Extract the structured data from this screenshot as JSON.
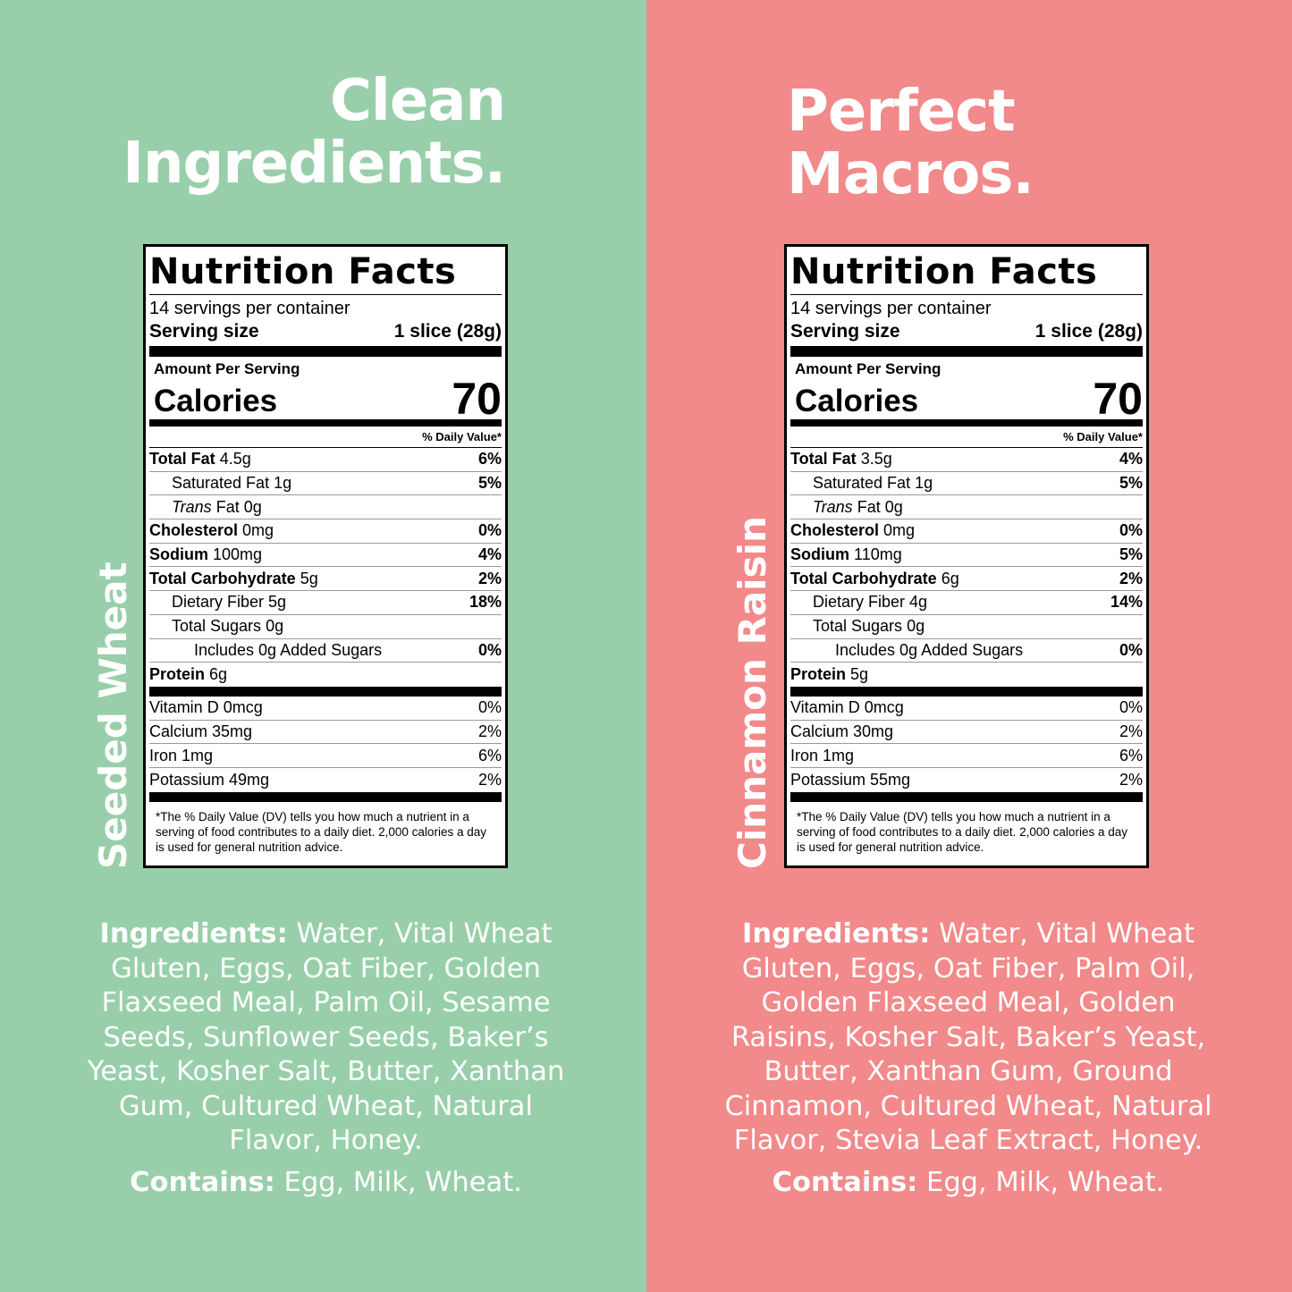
{
  "colors": {
    "left_bg": "#98cfaa",
    "right_bg": "#f2898a",
    "text": "#ffffff"
  },
  "left": {
    "headline_line1": "Clean",
    "headline_line2": "Ingredients.",
    "product_name": "Seeded Wheat",
    "label": {
      "title": "Nutrition Facts",
      "servings": "14 servings per container",
      "serving_size_label": "Serving size",
      "serving_size_value": "1 slice (28g)",
      "amount_per_serving": "Amount Per Serving",
      "calories_label": "Calories",
      "calories_value": "70",
      "dv_header": "% Daily Value*",
      "rows": [
        {
          "name": "Total Fat",
          "amount": "4.5g",
          "pct": "6%"
        },
        {
          "name": "Saturated Fat",
          "amount": "1g",
          "pct": "5%"
        },
        {
          "name": "Trans",
          "amount": "Fat 0g",
          "pct": ""
        },
        {
          "name": "Cholesterol",
          "amount": "0mg",
          "pct": "0%"
        },
        {
          "name": "Sodium",
          "amount": "100mg",
          "pct": "4%"
        },
        {
          "name": "Total Carbohydrate",
          "amount": "5g",
          "pct": "2%"
        },
        {
          "name": "Dietary Fiber",
          "amount": "5g",
          "pct": "18%"
        },
        {
          "name": "Total Sugars",
          "amount": "0g",
          "pct": ""
        },
        {
          "name": "Includes 0g Added Sugars",
          "amount": "",
          "pct": "0%"
        },
        {
          "name": "Protein",
          "amount": "6g",
          "pct": ""
        }
      ],
      "vitamins": [
        {
          "name": "Vitamin D 0mcg",
          "pct": "0%"
        },
        {
          "name": "Calcium 35mg",
          "pct": "2%"
        },
        {
          "name": "Iron 1mg",
          "pct": "6%"
        },
        {
          "name": "Potassium 49mg",
          "pct": "2%"
        }
      ],
      "footnote": "*The % Daily Value (DV) tells you how much a nutrient in a serving of food contributes to a daily diet. 2,000 calories a day is used for general nutrition advice."
    },
    "ingredients_label": "Ingredients:",
    "ingredients_text": " Water, Vital Wheat Gluten, Eggs, Oat Fiber, Golden Flaxseed Meal, Palm Oil, Sesame Seeds, Sunflower Seeds, Baker’s Yeast, Kosher Salt, Butter, Xanthan Gum, Cultured Wheat, Natural Flavor, Honey.",
    "contains_label": "Contains:",
    "contains_text": " Egg, Milk, Wheat."
  },
  "right": {
    "headline_line1": "Perfect",
    "headline_line2": "Macros.",
    "product_name": "Cinnamon Raisin",
    "label": {
      "title": "Nutrition Facts",
      "servings": "14 servings per container",
      "serving_size_label": "Serving size",
      "serving_size_value": "1 slice (28g)",
      "amount_per_serving": "Amount Per Serving",
      "calories_label": "Calories",
      "calories_value": "70",
      "dv_header": "% Daily Value*",
      "rows": [
        {
          "name": "Total Fat",
          "amount": "3.5g",
          "pct": "4%"
        },
        {
          "name": "Saturated Fat",
          "amount": "1g",
          "pct": "5%"
        },
        {
          "name": "Trans",
          "amount": "Fat 0g",
          "pct": ""
        },
        {
          "name": "Cholesterol",
          "amount": "0mg",
          "pct": "0%"
        },
        {
          "name": "Sodium",
          "amount": "110mg",
          "pct": "5%"
        },
        {
          "name": "Total Carbohydrate",
          "amount": "6g",
          "pct": "2%"
        },
        {
          "name": "Dietary Fiber",
          "amount": "4g",
          "pct": "14%"
        },
        {
          "name": "Total Sugars",
          "amount": "0g",
          "pct": ""
        },
        {
          "name": "Includes 0g Added Sugars",
          "amount": "",
          "pct": "0%"
        },
        {
          "name": "Protein",
          "amount": "5g",
          "pct": ""
        }
      ],
      "vitamins": [
        {
          "name": "Vitamin D 0mcg",
          "pct": "0%"
        },
        {
          "name": "Calcium 30mg",
          "pct": "2%"
        },
        {
          "name": "Iron 1mg",
          "pct": "6%"
        },
        {
          "name": "Potassium 55mg",
          "pct": "2%"
        }
      ],
      "footnote": "*The % Daily Value (DV) tells you how much a nutrient in a serving of food contributes to a daily diet. 2,000 calories a day is used for general nutrition advice."
    },
    "ingredients_label": "Ingredients:",
    "ingredients_text": " Water, Vital Wheat Gluten, Eggs, Oat Fiber, Palm Oil, Golden Flaxseed Meal, Golden Raisins, Kosher Salt, Baker’s Yeast, Butter, Xanthan Gum, Ground Cinnamon, Cultured Wheat, Natural Flavor, Stevia Leaf Extract, Honey.",
    "contains_label": "Contains:",
    "contains_text": " Egg, Milk, Wheat."
  }
}
